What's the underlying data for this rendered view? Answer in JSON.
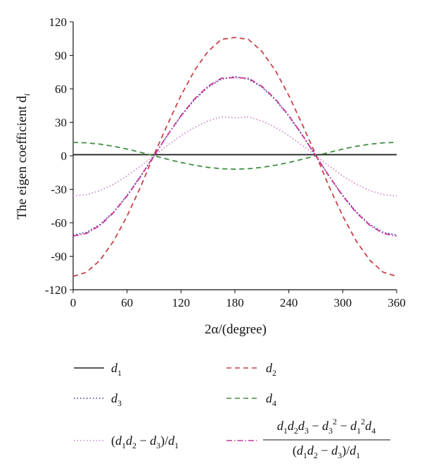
{
  "chart_data": {
    "type": "line",
    "title": "",
    "xlabel": "2α/(degree)",
    "ylabel": "The eigen coefficient d",
    "ylabel_subscript": "i",
    "xlim": [
      0,
      360
    ],
    "ylim": [
      -120,
      120
    ],
    "x_ticks": [
      0,
      60,
      120,
      180,
      240,
      300,
      360
    ],
    "y_ticks": [
      120,
      90,
      60,
      30,
      0,
      -30,
      -60,
      -90,
      -120
    ],
    "grid": false,
    "legend": "bottom",
    "x": [
      0,
      15,
      30,
      45,
      60,
      75,
      90,
      105,
      120,
      135,
      150,
      165,
      180,
      195,
      210,
      225,
      240,
      255,
      270,
      285,
      300,
      315,
      330,
      345,
      360
    ],
    "series": [
      {
        "name": "d1",
        "color": "#222222",
        "dash": "solid",
        "values": [
          1,
          1,
          1,
          1,
          1,
          1,
          1,
          1,
          1,
          1,
          1,
          1,
          1,
          1,
          1,
          1,
          1,
          1,
          1,
          1,
          1,
          1,
          1,
          1,
          1
        ]
      },
      {
        "name": "d2",
        "color": "#c9424a",
        "dash": "dashed",
        "values": [
          -108,
          -104.3,
          -93.5,
          -76.4,
          -54,
          -28,
          1,
          28,
          54,
          76.4,
          93.5,
          104.3,
          106,
          104.3,
          93.5,
          76.4,
          54,
          28,
          1,
          -28,
          -54,
          -76.4,
          -93.5,
          -104.3,
          -108
        ]
      },
      {
        "name": "d3",
        "color": "#333399",
        "dash": "dotted",
        "values": [
          -71,
          -68.6,
          -61.5,
          -50.2,
          -35.5,
          -18.4,
          0,
          18.4,
          35.5,
          50.2,
          61.5,
          68.6,
          71,
          68.6,
          61.5,
          50.2,
          35.5,
          18.4,
          0,
          -18.4,
          -35.5,
          -50.2,
          -61.5,
          -68.6,
          -71
        ]
      },
      {
        "name": "d4",
        "color": "#3f8f3f",
        "dash": "dashed",
        "values": [
          12,
          11.6,
          10.4,
          8.5,
          6,
          3.1,
          0,
          -3.1,
          -6,
          -8.5,
          -10.4,
          -11.6,
          -12,
          -11.6,
          -10.4,
          -8.5,
          -6,
          -3.1,
          0,
          3.1,
          6,
          8.5,
          10.4,
          11.6,
          12
        ]
      },
      {
        "name": "(d1d2 − d3)/d1",
        "color": "#cc88cc",
        "dash": "dotted",
        "values": [
          -36,
          -34.8,
          -31.2,
          -25.5,
          -18,
          -9.3,
          0,
          9.3,
          18,
          25.5,
          31.2,
          34.8,
          34,
          34.8,
          31.2,
          25.5,
          18,
          9.3,
          0,
          -9.3,
          -18,
          -25.5,
          -31.2,
          -34.8,
          -36
        ]
      },
      {
        "name": "(d1d2d3 − d3² − d1²d4)/((d1d2 − d3)/d1)",
        "color": "#cc3399",
        "dash": "dashdot",
        "values": [
          -72,
          -69.5,
          -62.3,
          -50.9,
          -36,
          -18.6,
          0,
          18.6,
          36,
          50.9,
          62.3,
          69.5,
          70,
          69.5,
          62.3,
          50.9,
          36,
          18.6,
          0,
          -18.6,
          -36,
          -50.9,
          -62.3,
          -69.5,
          -72
        ]
      }
    ]
  }
}
